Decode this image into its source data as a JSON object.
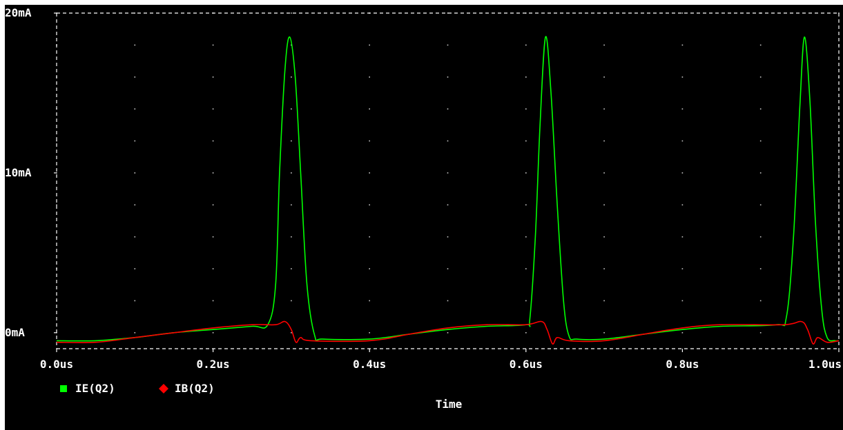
{
  "chart_data": {
    "type": "line",
    "title": "",
    "xlabel": "Time",
    "ylabel": "",
    "xlim": [
      0,
      1.0
    ],
    "ylim": [
      -1,
      20
    ],
    "x_unit": "us",
    "y_unit": "mA",
    "x_ticks": [
      0.0,
      0.2,
      0.4,
      0.6,
      0.8,
      1.0
    ],
    "x_tick_labels": [
      "0.0us",
      "0.2us",
      "0.4us",
      "0.6us",
      "0.8us",
      "1.0us"
    ],
    "y_ticks": [
      0,
      10,
      20
    ],
    "y_tick_labels": [
      "0mA",
      "10mA",
      "20mA"
    ],
    "grid": "dotted",
    "legend_position": "bottom-left",
    "background_color": "#000000",
    "axis_color": "#ffffff",
    "series": [
      {
        "name": "IE(Q2)",
        "color": "#00ff00",
        "marker": "square",
        "points": [
          [
            0.0,
            -0.5
          ],
          [
            0.05,
            -0.5
          ],
          [
            0.1,
            -0.3
          ],
          [
            0.15,
            0.0
          ],
          [
            0.2,
            0.2
          ],
          [
            0.25,
            0.4
          ],
          [
            0.27,
            0.5
          ],
          [
            0.28,
            3.0
          ],
          [
            0.285,
            10.0
          ],
          [
            0.292,
            16.5
          ],
          [
            0.298,
            18.5
          ],
          [
            0.305,
            16.0
          ],
          [
            0.312,
            10.0
          ],
          [
            0.32,
            3.0
          ],
          [
            0.33,
            -0.2
          ],
          [
            0.34,
            -0.4
          ],
          [
            0.4,
            -0.4
          ],
          [
            0.45,
            -0.1
          ],
          [
            0.5,
            0.2
          ],
          [
            0.55,
            0.4
          ],
          [
            0.6,
            0.5
          ],
          [
            0.605,
            0.9
          ],
          [
            0.612,
            6.0
          ],
          [
            0.618,
            13.0
          ],
          [
            0.625,
            18.5
          ],
          [
            0.632,
            15.0
          ],
          [
            0.64,
            8.0
          ],
          [
            0.648,
            2.0
          ],
          [
            0.655,
            -0.2
          ],
          [
            0.665,
            -0.4
          ],
          [
            0.7,
            -0.4
          ],
          [
            0.75,
            -0.1
          ],
          [
            0.8,
            0.2
          ],
          [
            0.85,
            0.4
          ],
          [
            0.92,
            0.5
          ],
          [
            0.933,
            1.0
          ],
          [
            0.942,
            6.0
          ],
          [
            0.95,
            14.0
          ],
          [
            0.956,
            18.5
          ],
          [
            0.963,
            14.5
          ],
          [
            0.97,
            7.0
          ],
          [
            0.978,
            1.5
          ],
          [
            0.985,
            -0.3
          ],
          [
            0.995,
            -0.5
          ],
          [
            1.0,
            -0.5
          ]
        ]
      },
      {
        "name": "IB(Q2)",
        "color": "#ff0000",
        "marker": "diamond",
        "points": [
          [
            0.0,
            -0.6
          ],
          [
            0.05,
            -0.6
          ],
          [
            0.1,
            -0.3
          ],
          [
            0.15,
            0.0
          ],
          [
            0.2,
            0.3
          ],
          [
            0.25,
            0.5
          ],
          [
            0.28,
            0.5
          ],
          [
            0.292,
            0.7
          ],
          [
            0.3,
            0.2
          ],
          [
            0.306,
            -0.6
          ],
          [
            0.312,
            -0.3
          ],
          [
            0.325,
            -0.5
          ],
          [
            0.4,
            -0.5
          ],
          [
            0.45,
            -0.1
          ],
          [
            0.5,
            0.3
          ],
          [
            0.55,
            0.5
          ],
          [
            0.6,
            0.5
          ],
          [
            0.62,
            0.7
          ],
          [
            0.627,
            0.2
          ],
          [
            0.634,
            -0.7
          ],
          [
            0.64,
            -0.3
          ],
          [
            0.655,
            -0.5
          ],
          [
            0.7,
            -0.5
          ],
          [
            0.75,
            -0.1
          ],
          [
            0.8,
            0.3
          ],
          [
            0.85,
            0.5
          ],
          [
            0.93,
            0.5
          ],
          [
            0.952,
            0.7
          ],
          [
            0.96,
            0.2
          ],
          [
            0.967,
            -0.7
          ],
          [
            0.973,
            -0.3
          ],
          [
            0.985,
            -0.6
          ],
          [
            1.0,
            -0.5
          ]
        ]
      }
    ]
  }
}
